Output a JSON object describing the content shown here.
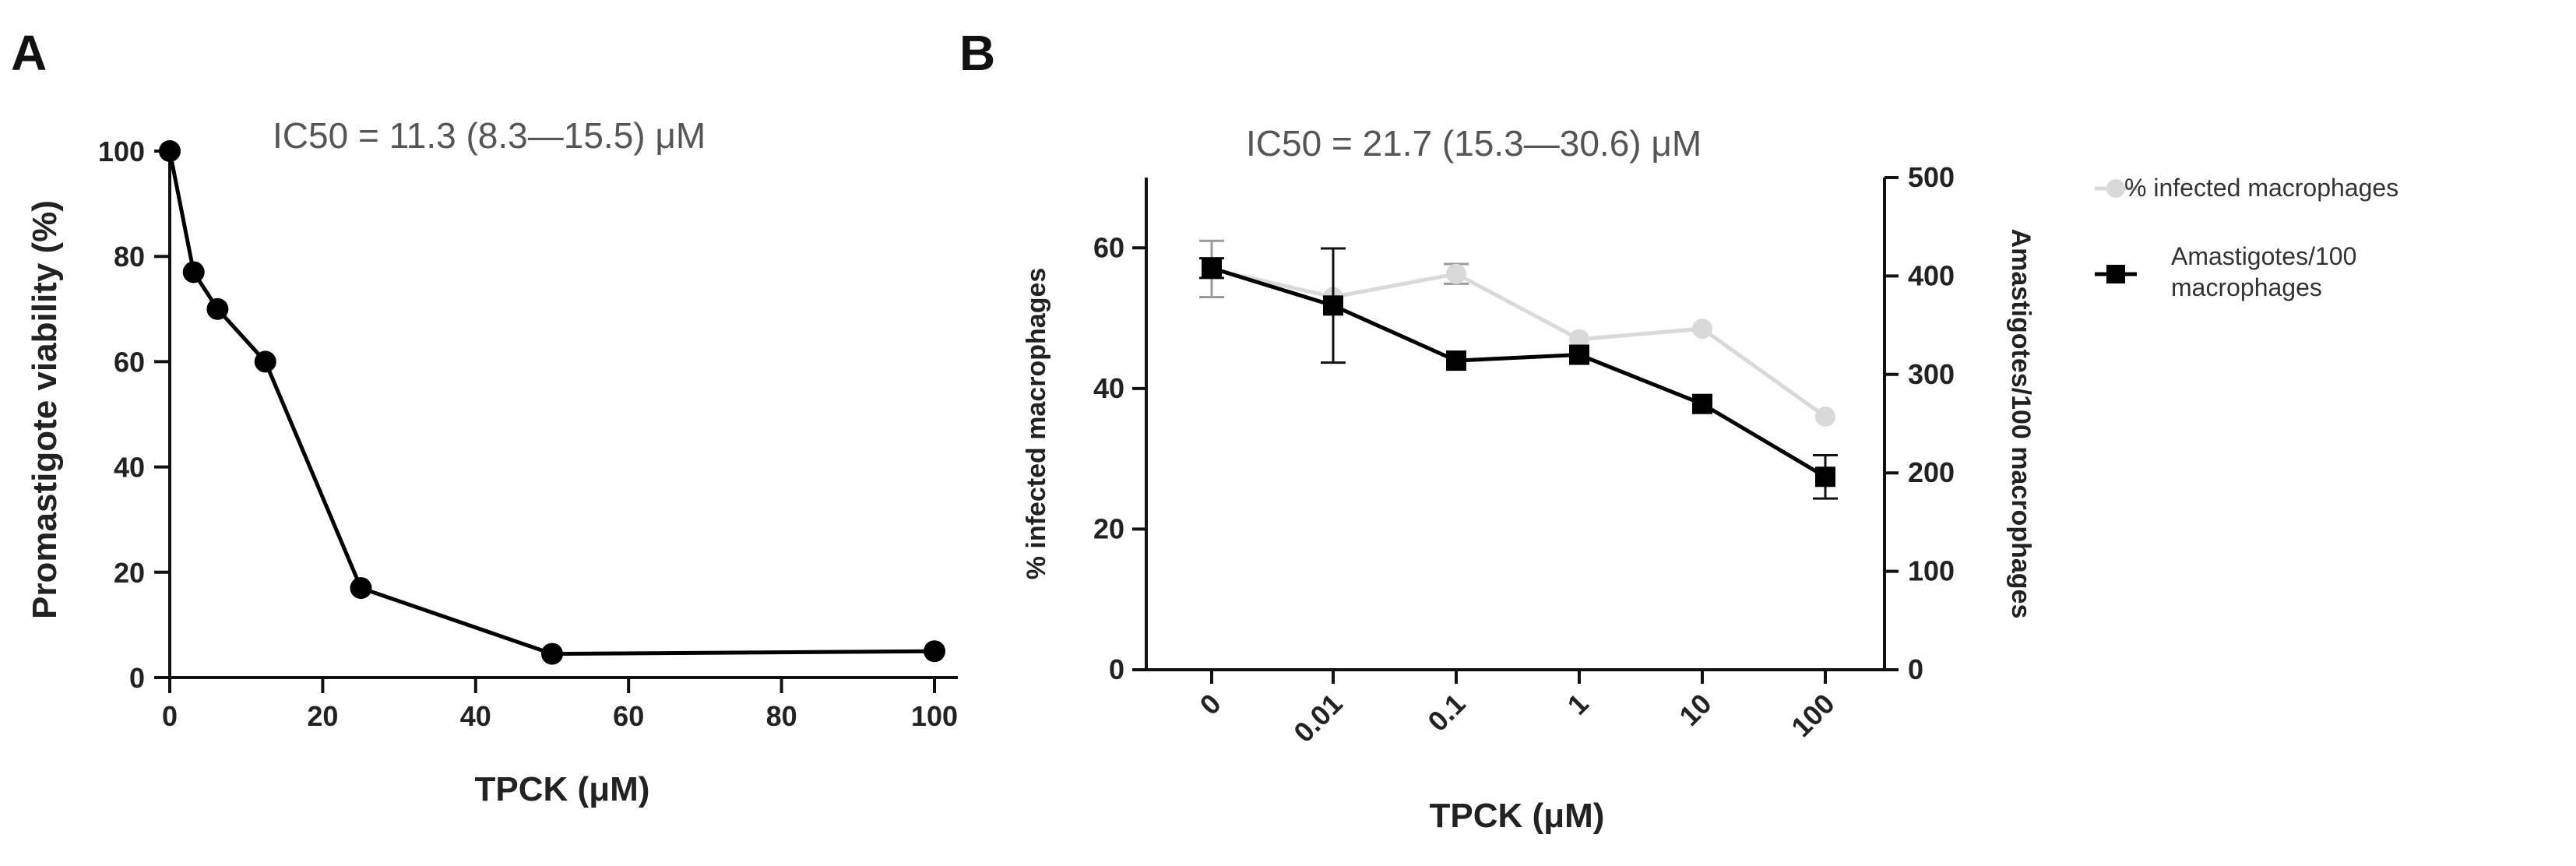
{
  "chart_data": [
    {
      "panel": "A",
      "type": "line",
      "title": "IC50 = 11.3 (8.3—15.5) μM",
      "xlabel": "TPCK (μM)",
      "ylabel": "Promastigote viability (%)",
      "xlim": [
        0,
        100
      ],
      "ylim": [
        0,
        100
      ],
      "xticks": [
        0,
        20,
        40,
        60,
        80,
        100
      ],
      "yticks": [
        0,
        20,
        40,
        60,
        80,
        100
      ],
      "series": [
        {
          "name": "Promastigote viability",
          "color": "#000000",
          "marker": "circle",
          "x": [
            0,
            3.125,
            6.25,
            12.5,
            25,
            50,
            100
          ],
          "y": [
            100,
            77,
            70,
            60,
            17,
            4.5,
            5
          ]
        }
      ]
    },
    {
      "panel": "B",
      "type": "line",
      "title": "IC50 = 21.7 (15.3—30.6) μM",
      "xlabel": "TPCK (μM)",
      "ylabel": "% infected macrophages",
      "y2label": "Amastigotes/100 macrophages",
      "categories": [
        "0",
        "0.01",
        "0.1",
        "1",
        "10",
        "100"
      ],
      "ylim": [
        0,
        70
      ],
      "yticks": [
        0,
        20,
        40,
        60
      ],
      "y2lim": [
        0,
        500
      ],
      "y2ticks": [
        0,
        100,
        200,
        300,
        400,
        500
      ],
      "legend_position": "right",
      "series": [
        {
          "name": "% infected macrophages",
          "axis": "left",
          "color": "#d9d9d9",
          "marker": "circle",
          "values": [
            57,
            53,
            56.3,
            47,
            48.5,
            36
          ],
          "errors": [
            4,
            0,
            1.4,
            0,
            0,
            0
          ]
        },
        {
          "name": "Amastigotes/100 macrophages",
          "axis": "right",
          "color": "#000000",
          "marker": "square",
          "values": [
            408,
            370,
            314,
            320,
            270,
            196
          ],
          "errors": [
            10,
            58,
            0,
            0,
            0,
            22
          ]
        }
      ]
    }
  ],
  "panels": {
    "A": {
      "letter": "A"
    },
    "B": {
      "letter": "B",
      "legend": [
        {
          "label_lines": [
            "% infected macrophages"
          ]
        },
        {
          "label_lines": [
            "Amastigotes/100",
            "macrophages"
          ]
        }
      ]
    }
  }
}
